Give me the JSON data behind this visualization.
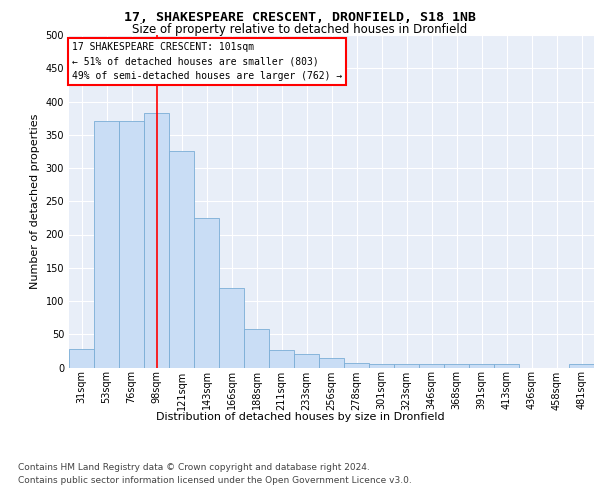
{
  "title1": "17, SHAKESPEARE CRESCENT, DRONFIELD, S18 1NB",
  "title2": "Size of property relative to detached houses in Dronfield",
  "xlabel": "Distribution of detached houses by size in Dronfield",
  "ylabel": "Number of detached properties",
  "footer1": "Contains HM Land Registry data © Crown copyright and database right 2024.",
  "footer2": "Contains public sector information licensed under the Open Government Licence v3.0.",
  "annotation_line1": "17 SHAKESPEARE CRESCENT: 101sqm",
  "annotation_line2": "← 51% of detached houses are smaller (803)",
  "annotation_line3": "49% of semi-detached houses are larger (762) →",
  "bin_labels": [
    "31sqm",
    "53sqm",
    "76sqm",
    "98sqm",
    "121sqm",
    "143sqm",
    "166sqm",
    "188sqm",
    "211sqm",
    "233sqm",
    "256sqm",
    "278sqm",
    "301sqm",
    "323sqm",
    "346sqm",
    "368sqm",
    "391sqm",
    "413sqm",
    "436sqm",
    "458sqm",
    "481sqm"
  ],
  "bar_values": [
    28,
    370,
    370,
    383,
    325,
    225,
    120,
    58,
    27,
    20,
    15,
    7,
    5,
    5,
    5,
    5,
    5,
    5,
    0,
    0,
    6
  ],
  "bar_color": "#c9ddf5",
  "bar_edge_color": "#7aadd6",
  "red_line_x": 3.5,
  "ylim": [
    0,
    500
  ],
  "yticks": [
    0,
    50,
    100,
    150,
    200,
    250,
    300,
    350,
    400,
    450,
    500
  ],
  "bg_color": "#ffffff",
  "plot_bg_color": "#e8eef8",
  "title1_fontsize": 9.5,
  "title2_fontsize": 8.5,
  "axis_label_fontsize": 8,
  "tick_fontsize": 7,
  "footer_fontsize": 6.5,
  "annotation_fontsize": 7,
  "xlabel_fontsize": 8
}
